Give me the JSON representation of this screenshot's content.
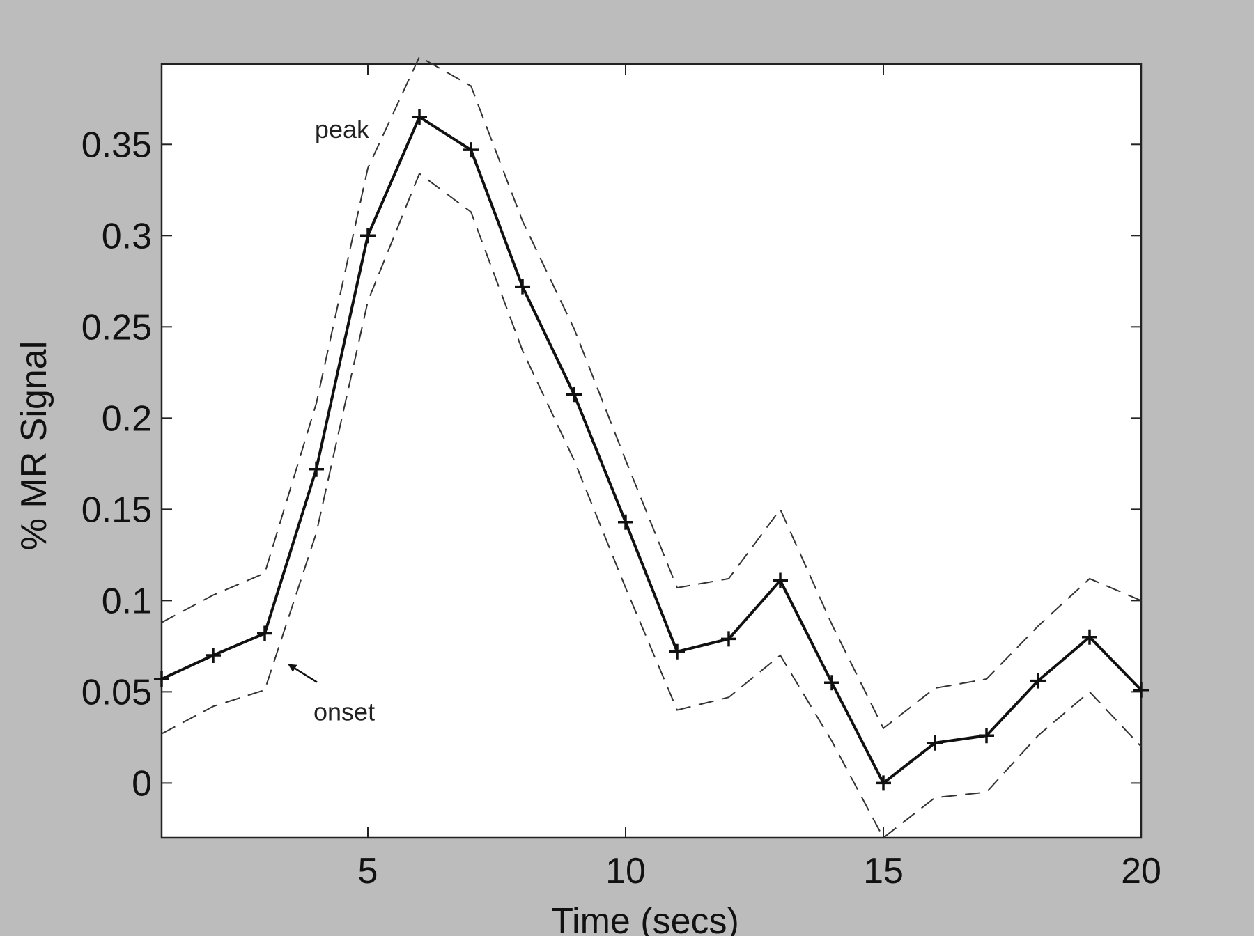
{
  "chart_data": {
    "type": "line",
    "title": "",
    "xlabel": "Time (secs)",
    "ylabel": "% MR Signal",
    "xlim": [
      1,
      20
    ],
    "ylim": [
      -0.03,
      0.394
    ],
    "x_ticks": [
      5,
      10,
      15,
      20
    ],
    "y_ticks": [
      0,
      0.05,
      0.1,
      0.15,
      0.2,
      0.25,
      0.3,
      0.35
    ],
    "x_tick_labels": [
      "5",
      "10",
      "15",
      "20"
    ],
    "y_tick_labels": [
      "0",
      "0.05",
      "0.1",
      "0.15",
      "0.2",
      "0.25",
      "0.3",
      "0.35"
    ],
    "grid": false,
    "x": [
      1,
      2,
      3,
      4,
      5,
      6,
      7,
      8,
      9,
      10,
      11,
      12,
      13,
      14,
      15,
      16,
      17,
      18,
      19,
      20
    ],
    "series": [
      {
        "role": "mean",
        "style": "solid-plus-markers",
        "values": [
          0.057,
          0.07,
          0.082,
          0.172,
          0.3,
          0.365,
          0.347,
          0.272,
          0.213,
          0.143,
          0.072,
          0.079,
          0.111,
          0.055,
          0.0,
          0.022,
          0.026,
          0.056,
          0.08,
          0.051
        ]
      },
      {
        "role": "upper-bound",
        "style": "dashed",
        "values": [
          0.088,
          0.103,
          0.115,
          0.208,
          0.337,
          0.398,
          0.382,
          0.308,
          0.249,
          0.177,
          0.107,
          0.112,
          0.15,
          0.087,
          0.03,
          0.052,
          0.057,
          0.086,
          0.112,
          0.1
        ]
      },
      {
        "role": "lower-bound",
        "style": "dashed",
        "values": [
          0.027,
          0.042,
          0.051,
          0.137,
          0.264,
          0.334,
          0.313,
          0.237,
          0.177,
          0.107,
          0.04,
          0.047,
          0.07,
          0.023,
          -0.03,
          -0.008,
          -0.005,
          0.026,
          0.05,
          0.02
        ]
      }
    ],
    "annotations": [
      {
        "text": "peak",
        "x": 6,
        "y": 0.365
      },
      {
        "text": "onset",
        "x": 3,
        "y": 0.082,
        "arrow": true
      }
    ],
    "colors": {
      "line": "#111111",
      "plot_background": "#ffffff",
      "figure_background": "#bcbcbc"
    }
  }
}
